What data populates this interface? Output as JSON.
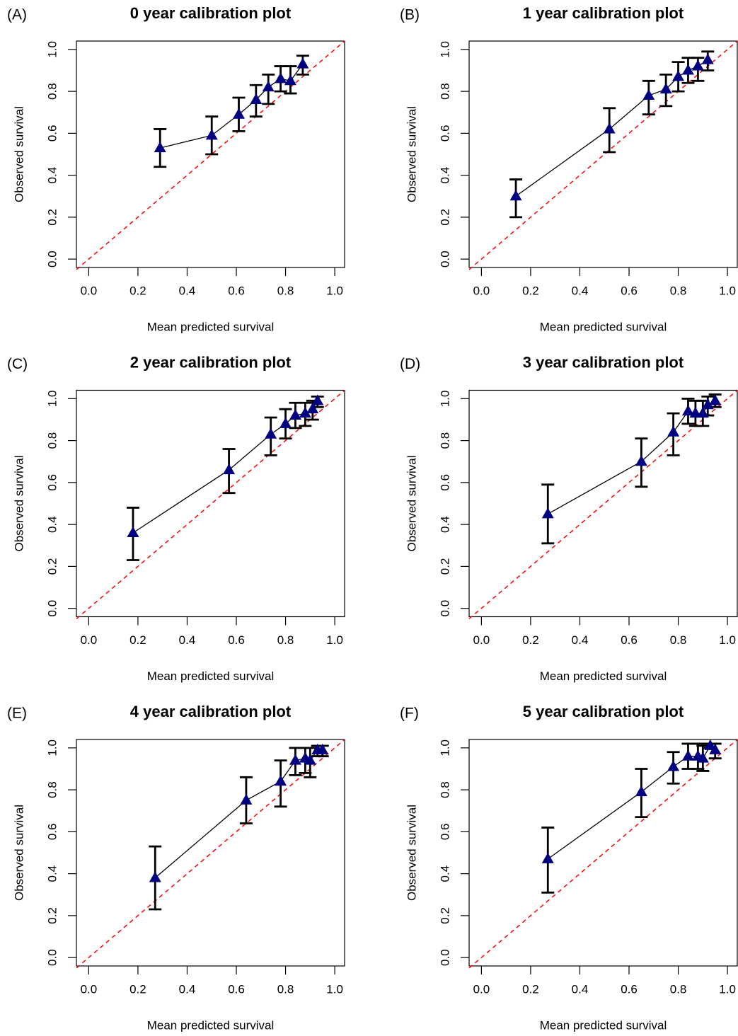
{
  "chart_data": [
    {
      "type": "line",
      "panel_label": "(A)",
      "title": "0  year calibration plot",
      "x_label": "Mean predicted survival",
      "y_label": "Observed survival",
      "x": [
        0.29,
        0.5,
        0.61,
        0.68,
        0.73,
        0.78,
        0.82,
        0.87
      ],
      "series": [
        {
          "color": "#000000",
          "marker_color": "#000080",
          "values": [
            0.53,
            0.59,
            0.69,
            0.76,
            0.82,
            0.86,
            0.85,
            0.93
          ],
          "error_low": [
            0.44,
            0.5,
            0.61,
            0.68,
            0.74,
            0.8,
            0.79,
            0.88
          ],
          "error_high": [
            0.62,
            0.68,
            0.77,
            0.83,
            0.88,
            0.92,
            0.92,
            0.97
          ]
        }
      ],
      "reference_color": "#ff0000",
      "xlim": [
        -0.05,
        1.04
      ],
      "ylim": [
        -0.04,
        1.04
      ],
      "xticks": [
        {
          "value": 0,
          "label": "0.0"
        },
        0.2,
        0.4,
        0.6,
        0.8,
        {
          "value": 1,
          "label": "1.0"
        }
      ],
      "yticks": [
        {
          "value": 0,
          "label": "0.0"
        },
        0.2,
        0.4,
        0.6,
        0.8,
        {
          "value": 1,
          "label": "1.0"
        }
      ]
    },
    {
      "type": "line",
      "panel_label": "(B)",
      "title": "1  year calibration plot",
      "x_label": "Mean predicted survival",
      "y_label": "Observed survival",
      "x": [
        0.14,
        0.52,
        0.68,
        0.75,
        0.8,
        0.84,
        0.88,
        0.92
      ],
      "series": [
        {
          "color": "#000000",
          "marker_color": "#000080",
          "values": [
            0.3,
            0.62,
            0.78,
            0.81,
            0.87,
            0.9,
            0.92,
            0.95
          ],
          "error_low": [
            0.2,
            0.51,
            0.69,
            0.73,
            0.8,
            0.84,
            0.85,
            0.9
          ],
          "error_high": [
            0.38,
            0.72,
            0.85,
            0.88,
            0.94,
            0.96,
            0.96,
            0.99
          ]
        }
      ],
      "reference_color": "#ff0000",
      "xlim": [
        -0.05,
        1.04
      ],
      "ylim": [
        -0.04,
        1.04
      ],
      "xticks": [
        {
          "value": 0,
          "label": "0.0"
        },
        0.2,
        0.4,
        0.6,
        0.8,
        {
          "value": 1,
          "label": "1.0"
        }
      ],
      "yticks": [
        {
          "value": 0,
          "label": "0.0"
        },
        0.2,
        0.4,
        0.6,
        0.8,
        {
          "value": 1,
          "label": "1.0"
        }
      ]
    },
    {
      "type": "line",
      "panel_label": "(C)",
      "title": "2  year calibration plot",
      "x_label": "Mean predicted survival",
      "y_label": "Observed survival",
      "x": [
        0.18,
        0.57,
        0.74,
        0.8,
        0.84,
        0.88,
        0.91,
        0.93
      ],
      "series": [
        {
          "color": "#000000",
          "marker_color": "#000080",
          "values": [
            0.36,
            0.66,
            0.83,
            0.88,
            0.92,
            0.93,
            0.95,
            0.99
          ],
          "error_low": [
            0.23,
            0.55,
            0.73,
            0.81,
            0.86,
            0.87,
            0.9,
            0.96
          ],
          "error_high": [
            0.48,
            0.76,
            0.91,
            0.95,
            0.98,
            0.98,
            0.99,
            1.01
          ]
        }
      ],
      "reference_color": "#ff0000",
      "xlim": [
        -0.05,
        1.04
      ],
      "ylim": [
        -0.04,
        1.04
      ],
      "xticks": [
        {
          "value": 0,
          "label": "0.0"
        },
        0.2,
        0.4,
        0.6,
        0.8,
        {
          "value": 1,
          "label": "1.0"
        }
      ],
      "yticks": [
        {
          "value": 0,
          "label": "0.0"
        },
        0.2,
        0.4,
        0.6,
        0.8,
        {
          "value": 1,
          "label": "1.0"
        }
      ]
    },
    {
      "type": "line",
      "panel_label": "(D)",
      "title": "3  year calibration plot",
      "x_label": "Mean predicted survival",
      "y_label": "Observed survival",
      "x": [
        0.27,
        0.65,
        0.78,
        0.84,
        0.87,
        0.9,
        0.92,
        0.95
      ],
      "series": [
        {
          "color": "#000000",
          "marker_color": "#000080",
          "values": [
            0.45,
            0.7,
            0.84,
            0.94,
            0.93,
            0.93,
            0.97,
            0.99
          ],
          "error_low": [
            0.31,
            0.58,
            0.73,
            0.88,
            0.87,
            0.87,
            0.92,
            0.96
          ],
          "error_high": [
            0.59,
            0.81,
            0.93,
            1.0,
            0.99,
            0.99,
            1.01,
            1.02
          ]
        }
      ],
      "reference_color": "#ff0000",
      "xlim": [
        -0.05,
        1.04
      ],
      "ylim": [
        -0.04,
        1.04
      ],
      "xticks": [
        {
          "value": 0,
          "label": "0.0"
        },
        0.2,
        0.4,
        0.6,
        0.8,
        {
          "value": 1,
          "label": "1.0"
        }
      ],
      "yticks": [
        {
          "value": 0,
          "label": "0.0"
        },
        0.2,
        0.4,
        0.6,
        0.8,
        {
          "value": 1,
          "label": "1.0"
        }
      ]
    },
    {
      "type": "line",
      "panel_label": "(E)",
      "title": "4  year calibration plot",
      "x_label": "Mean predicted survival",
      "y_label": "Observed survival",
      "x": [
        0.27,
        0.64,
        0.78,
        0.84,
        0.88,
        0.9,
        0.93,
        0.95
      ],
      "series": [
        {
          "color": "#000000",
          "marker_color": "#000080",
          "values": [
            0.38,
            0.75,
            0.84,
            0.94,
            0.95,
            0.94,
            0.99,
            0.99
          ],
          "error_low": [
            0.23,
            0.64,
            0.72,
            0.87,
            0.88,
            0.86,
            0.96,
            0.96
          ],
          "error_high": [
            0.53,
            0.86,
            0.94,
            1.0,
            1.0,
            1.0,
            1.01,
            1.01
          ]
        }
      ],
      "reference_color": "#ff0000",
      "xlim": [
        -0.05,
        1.04
      ],
      "ylim": [
        -0.04,
        1.04
      ],
      "xticks": [
        {
          "value": 0,
          "label": "0.0"
        },
        0.2,
        0.4,
        0.6,
        0.8,
        {
          "value": 1,
          "label": "1.0"
        }
      ],
      "yticks": [
        {
          "value": 0,
          "label": "0.0"
        },
        0.2,
        0.4,
        0.6,
        0.8,
        {
          "value": 1,
          "label": "1.0"
        }
      ]
    },
    {
      "type": "line",
      "panel_label": "(F)",
      "title": "5  year calibration plot",
      "x_label": "Mean predicted survival",
      "y_label": "Observed survival",
      "x": [
        0.27,
        0.65,
        0.78,
        0.84,
        0.88,
        0.9,
        0.93,
        0.95
      ],
      "series": [
        {
          "color": "#000000",
          "marker_color": "#000080",
          "values": [
            0.47,
            0.79,
            0.91,
            0.96,
            0.96,
            0.95,
            1.01,
            0.99
          ],
          "error_low": [
            0.31,
            0.67,
            0.83,
            0.9,
            0.9,
            0.89,
            1.0,
            0.95
          ],
          "error_high": [
            0.62,
            0.9,
            0.98,
            1.02,
            1.02,
            1.01,
            1.02,
            1.02
          ]
        }
      ],
      "reference_color": "#ff0000",
      "xlim": [
        -0.05,
        1.04
      ],
      "ylim": [
        -0.04,
        1.04
      ],
      "xticks": [
        {
          "value": 0,
          "label": "0.0"
        },
        0.2,
        0.4,
        0.6,
        0.8,
        {
          "value": 1,
          "label": "1.0"
        }
      ],
      "yticks": [
        {
          "value": 0,
          "label": "0.0"
        },
        0.2,
        0.4,
        0.6,
        0.8,
        {
          "value": 1,
          "label": "1.0"
        }
      ]
    }
  ]
}
